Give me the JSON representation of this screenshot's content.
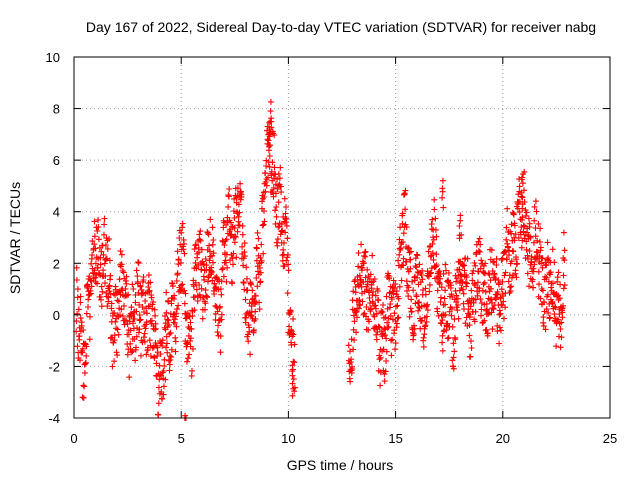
{
  "chart_data": {
    "type": "scatter",
    "title": "Day 167 of 2022, Sidereal Day-to-day VTEC variation (SDTVAR) for receiver nabg",
    "xlabel": "GPS time / hours",
    "ylabel": "SDTVAR / TECUs",
    "xlim": [
      0,
      25
    ],
    "ylim": [
      -4,
      10
    ],
    "xticks": [
      0,
      5,
      10,
      15,
      20,
      25
    ],
    "yticks": [
      -4,
      -2,
      0,
      2,
      4,
      6,
      8,
      10
    ],
    "grid": true,
    "marker": "+",
    "series": [
      {
        "name": "SDTVAR",
        "color": "#ff0000",
        "segments": [
          {
            "start": 0.1,
            "end": 10.3,
            "step": 0.012
          },
          {
            "start": 12.8,
            "end": 22.9,
            "step": 0.012
          }
        ],
        "trend": [
          [
            0.1,
            0.0
          ],
          [
            0.4,
            -1.5
          ],
          [
            0.8,
            1.0
          ],
          [
            1.0,
            2.8
          ],
          [
            1.4,
            2.0
          ],
          [
            1.8,
            0.0
          ],
          [
            2.3,
            0.5
          ],
          [
            2.8,
            -0.5
          ],
          [
            3.3,
            0.5
          ],
          [
            3.8,
            -1.5
          ],
          [
            4.2,
            -2.0
          ],
          [
            4.6,
            0.0
          ],
          [
            5.0,
            2.0
          ],
          [
            5.4,
            -1.0
          ],
          [
            5.8,
            1.5
          ],
          [
            6.3,
            2.0
          ],
          [
            6.8,
            0.5
          ],
          [
            7.2,
            3.0
          ],
          [
            7.7,
            4.2
          ],
          [
            8.0,
            1.0
          ],
          [
            8.4,
            -0.5
          ],
          [
            8.7,
            2.5
          ],
          [
            9.0,
            6.0
          ],
          [
            9.3,
            5.5
          ],
          [
            9.6,
            4.5
          ],
          [
            10.0,
            1.0
          ],
          [
            10.3,
            -1.5
          ],
          [
            12.8,
            -0.9
          ],
          [
            13.2,
            0.5
          ],
          [
            13.6,
            1.5
          ],
          [
            14.0,
            0.0
          ],
          [
            14.5,
            -1.0
          ],
          [
            15.0,
            0.5
          ],
          [
            15.4,
            3.0
          ],
          [
            15.8,
            1.0
          ],
          [
            16.3,
            0.5
          ],
          [
            16.8,
            2.5
          ],
          [
            17.2,
            0.5
          ],
          [
            17.6,
            -0.5
          ],
          [
            18.0,
            1.5
          ],
          [
            18.5,
            0.5
          ],
          [
            19.0,
            1.5
          ],
          [
            19.5,
            0.5
          ],
          [
            20.0,
            1.0
          ],
          [
            20.4,
            2.5
          ],
          [
            20.8,
            4.0
          ],
          [
            21.2,
            3.0
          ],
          [
            21.7,
            2.0
          ],
          [
            22.2,
            1.0
          ],
          [
            22.6,
            0.5
          ],
          [
            22.9,
            1.5
          ]
        ],
        "spread": 1.4,
        "spikes": [
          {
            "x": 9.2,
            "y": 8.3
          },
          {
            "x": 9.1,
            "y": 7.6
          },
          {
            "x": 5.2,
            "y": -3.8
          },
          {
            "x": 17.2,
            "y": 5.3
          },
          {
            "x": 10.2,
            "y": -2.1
          },
          {
            "x": 18.0,
            "y": 4.0
          },
          {
            "x": 20.9,
            "y": 4.7
          }
        ]
      }
    ]
  }
}
